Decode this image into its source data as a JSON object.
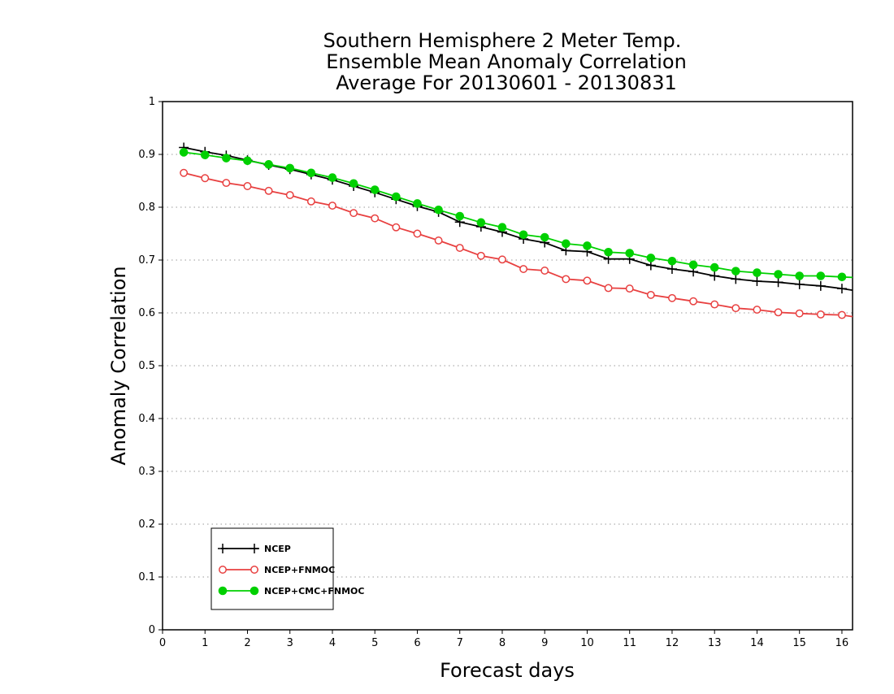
{
  "chart_data": {
    "type": "line",
    "title": [
      "Southern Hemisphere 2 Meter Temp.",
      "Ensemble Mean Anomaly Correlation",
      "Average For 20130601 - 20130831"
    ],
    "xlabel": "Forecast days",
    "ylabel": "Anomaly Correlation",
    "xlim": [
      0,
      16.25
    ],
    "ylim": [
      0,
      1
    ],
    "xticks": [
      0,
      1,
      2,
      3,
      4,
      5,
      6,
      7,
      8,
      9,
      10,
      11,
      12,
      13,
      14,
      15,
      16
    ],
    "xtick_labels": [
      "0",
      "1",
      "2",
      "3",
      "4",
      "5",
      "6",
      "7",
      "8",
      "9",
      "10",
      "11",
      "12",
      "13",
      "14",
      "15",
      "16"
    ],
    "yticks": [
      0,
      0.1,
      0.2,
      0.3,
      0.4,
      0.5,
      0.6,
      0.7,
      0.8,
      0.9,
      1
    ],
    "ytick_labels": [
      "0",
      "0.1",
      "0.2",
      "0.3",
      "0.4",
      "0.5",
      "0.6",
      "0.7",
      "0.8",
      "0.9",
      "1"
    ],
    "grid": "horizontal dotted",
    "legend_position": "bottom-left",
    "x": [
      0.5,
      1,
      1.5,
      2,
      2.5,
      3,
      3.5,
      4,
      4.5,
      5,
      5.5,
      6,
      6.5,
      7,
      7.5,
      8,
      8.5,
      9,
      9.5,
      10,
      10.5,
      11,
      11.5,
      12,
      12.5,
      13,
      13.5,
      14,
      14.5,
      15,
      15.5,
      16,
      16.25
    ],
    "series": [
      {
        "name": "NCEP",
        "color": "#000000",
        "marker": "plus",
        "values": [
          0.913,
          0.905,
          0.898,
          0.889,
          0.88,
          0.872,
          0.862,
          0.852,
          0.84,
          0.828,
          0.815,
          0.802,
          0.791,
          0.772,
          0.763,
          0.753,
          0.74,
          0.733,
          0.718,
          0.716,
          0.702,
          0.702,
          0.69,
          0.683,
          0.678,
          0.67,
          0.664,
          0.66,
          0.658,
          0.654,
          0.651,
          0.646,
          0.643
        ]
      },
      {
        "name": "NCEP+FNMOC",
        "color": "#e84040",
        "marker": "open-circle",
        "values": [
          0.865,
          0.855,
          0.846,
          0.84,
          0.831,
          0.823,
          0.811,
          0.803,
          0.789,
          0.779,
          0.762,
          0.75,
          0.737,
          0.723,
          0.708,
          0.701,
          0.683,
          0.68,
          0.664,
          0.661,
          0.647,
          0.646,
          0.634,
          0.628,
          0.622,
          0.616,
          0.609,
          0.606,
          0.601,
          0.599,
          0.597,
          0.596,
          0.593
        ]
      },
      {
        "name": "NCEP+CMC+FNMOC",
        "color": "#00d000",
        "marker": "filled-circle",
        "values": [
          0.904,
          0.899,
          0.893,
          0.888,
          0.881,
          0.874,
          0.865,
          0.856,
          0.845,
          0.833,
          0.82,
          0.807,
          0.795,
          0.783,
          0.771,
          0.762,
          0.748,
          0.743,
          0.731,
          0.727,
          0.715,
          0.713,
          0.704,
          0.698,
          0.691,
          0.686,
          0.679,
          0.676,
          0.673,
          0.67,
          0.67,
          0.668,
          0.667
        ]
      }
    ]
  }
}
